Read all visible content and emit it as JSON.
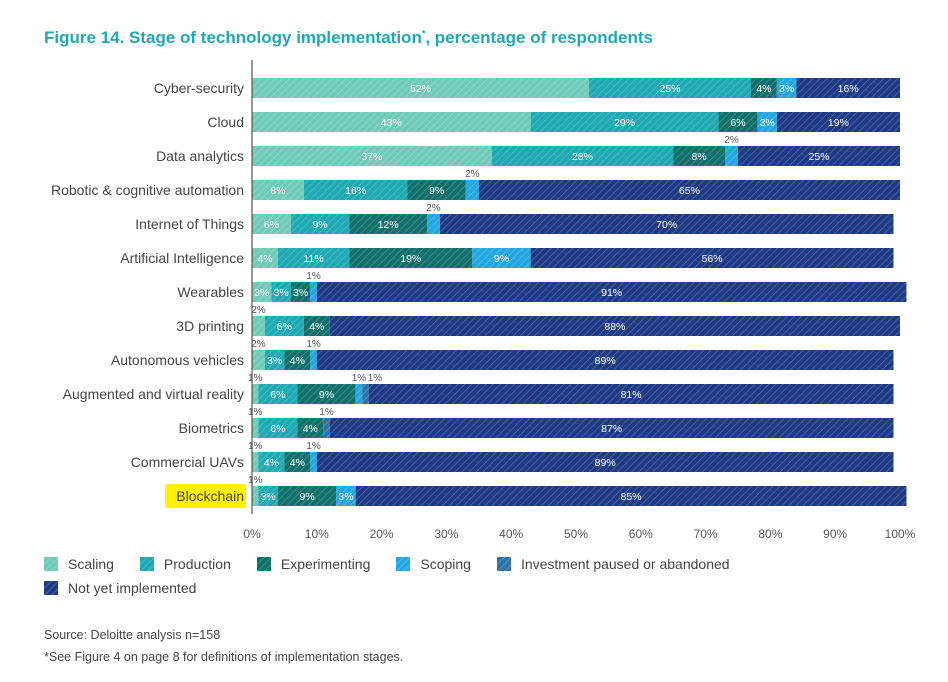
{
  "title_text": "Figure 14. Stage of technology implementation",
  "title_mark": "*",
  "title_suffix": ", percentage of respondents",
  "source": "Source: Deloitte analysis    n=158",
  "note": "*See Figure 4 on page 8 for definitions of implementation stages.",
  "chart_data": {
    "type": "bar",
    "orientation": "horizontal",
    "stacked": true,
    "title": "Figure 14. Stage of technology implementation*, percentage of respondents",
    "xlabel": "",
    "ylabel": "",
    "xlim": [
      0,
      100
    ],
    "ticks": [
      "0%",
      "10%",
      "20%",
      "30%",
      "40%",
      "50%",
      "60%",
      "70%",
      "80%",
      "90%",
      "100%"
    ],
    "legend_position": "bottom",
    "highlighted_category": "Blockchain",
    "highlight_color": "#fff200",
    "categories": [
      "Cyber-security",
      "Cloud",
      "Data analytics",
      "Robotic & cognitive automation",
      "Internet of Things",
      "Artificial Intelligence",
      "Wearables",
      "3D printing",
      "Autonomous vehicles",
      "Augmented and virtual reality",
      "Biometrics",
      "Commercial UAVs",
      "Blockchain"
    ],
    "series": [
      {
        "name": "Scaling",
        "color": "#6fcbb8",
        "values": [
          52,
          43,
          37,
          8,
          6,
          4,
          3,
          2,
          2,
          1,
          1,
          1,
          1
        ]
      },
      {
        "name": "Production",
        "color": "#1ea9b3",
        "values": [
          25,
          29,
          28,
          16,
          9,
          11,
          3,
          6,
          3,
          6,
          6,
          4,
          3
        ]
      },
      {
        "name": "Experimenting",
        "color": "#0f6f6a",
        "values": [
          4,
          6,
          8,
          9,
          12,
          19,
          3,
          4,
          4,
          9,
          4,
          4,
          9
        ]
      },
      {
        "name": "Scoping",
        "color": "#23a7e0",
        "values": [
          3,
          3,
          2,
          2,
          2,
          9,
          1,
          0,
          1,
          1,
          0,
          1,
          3
        ]
      },
      {
        "name": "Investment paused or abandoned",
        "color": "#2b73a6",
        "values": [
          0,
          0,
          0,
          0,
          0,
          0,
          0,
          0,
          0,
          1,
          1,
          0,
          0
        ]
      },
      {
        "name": "Not yet implemented",
        "color": "#1d3a85",
        "values": [
          16,
          19,
          25,
          65,
          70,
          56,
          91,
          88,
          89,
          81,
          87,
          89,
          85
        ]
      }
    ]
  }
}
